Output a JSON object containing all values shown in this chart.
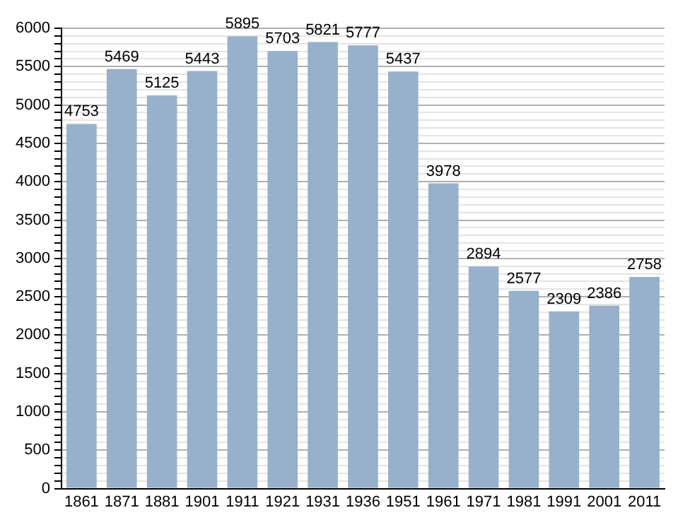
{
  "chart_data": {
    "type": "bar",
    "categories": [
      "1861",
      "1871",
      "1881",
      "1901",
      "1911",
      "1921",
      "1931",
      "1936",
      "1951",
      "1961",
      "1971",
      "1981",
      "1991",
      "2001",
      "2011"
    ],
    "values": [
      4753,
      5469,
      5125,
      5443,
      5895,
      5703,
      5821,
      5777,
      5437,
      3978,
      2894,
      2577,
      2309,
      2386,
      2758
    ],
    "color": "#97b1cc",
    "data_labels": true,
    "grid": true,
    "ylim": [
      0,
      6000
    ],
    "yticks": [
      0,
      {
        "value": 100,
        "label": null
      },
      {
        "value": 200,
        "label": null
      },
      {
        "value": 300,
        "label": null
      },
      {
        "value": 400,
        "label": null
      },
      500,
      {
        "value": 600,
        "label": null
      },
      {
        "value": 700,
        "label": null
      },
      {
        "value": 800,
        "label": null
      },
      {
        "value": 900,
        "label": null
      },
      1000,
      {
        "value": 1100,
        "label": null
      },
      {
        "value": 1200,
        "label": null
      },
      {
        "value": 1300,
        "label": null
      },
      {
        "value": 1400,
        "label": null
      },
      1500,
      {
        "value": 1600,
        "label": null
      },
      {
        "value": 1700,
        "label": null
      },
      {
        "value": 1800,
        "label": null
      },
      {
        "value": 1900,
        "label": null
      },
      2000,
      {
        "value": 2100,
        "label": null
      },
      {
        "value": 2200,
        "label": null
      },
      {
        "value": 2300,
        "label": null
      },
      {
        "value": 2400,
        "label": null
      },
      2500,
      {
        "value": 2600,
        "label": null
      },
      {
        "value": 2700,
        "label": null
      },
      {
        "value": 2800,
        "label": null
      },
      {
        "value": 2900,
        "label": null
      },
      3000,
      {
        "value": 3100,
        "label": null
      },
      {
        "value": 3200,
        "label": null
      },
      {
        "value": 3300,
        "label": null
      },
      {
        "value": 3400,
        "label": null
      },
      3500,
      {
        "value": 3600,
        "label": null
      },
      {
        "value": 3700,
        "label": null
      },
      {
        "value": 3800,
        "label": null
      },
      {
        "value": 3900,
        "label": null
      },
      4000,
      {
        "value": 4100,
        "label": null
      },
      {
        "value": 4200,
        "label": null
      },
      {
        "value": 4300,
        "label": null
      },
      {
        "value": 4400,
        "label": null
      },
      4500,
      {
        "value": 4600,
        "label": null
      },
      {
        "value": 4700,
        "label": null
      },
      {
        "value": 4800,
        "label": null
      },
      {
        "value": 4900,
        "label": null
      },
      5000,
      {
        "value": 5100,
        "label": null
      },
      {
        "value": 5200,
        "label": null
      },
      {
        "value": 5300,
        "label": null
      },
      {
        "value": 5400,
        "label": null
      },
      5500,
      {
        "value": 5600,
        "label": null
      },
      {
        "value": 5700,
        "label": null
      },
      {
        "value": 5800,
        "label": null
      },
      {
        "value": 5900,
        "label": null
      },
      6000
    ]
  }
}
